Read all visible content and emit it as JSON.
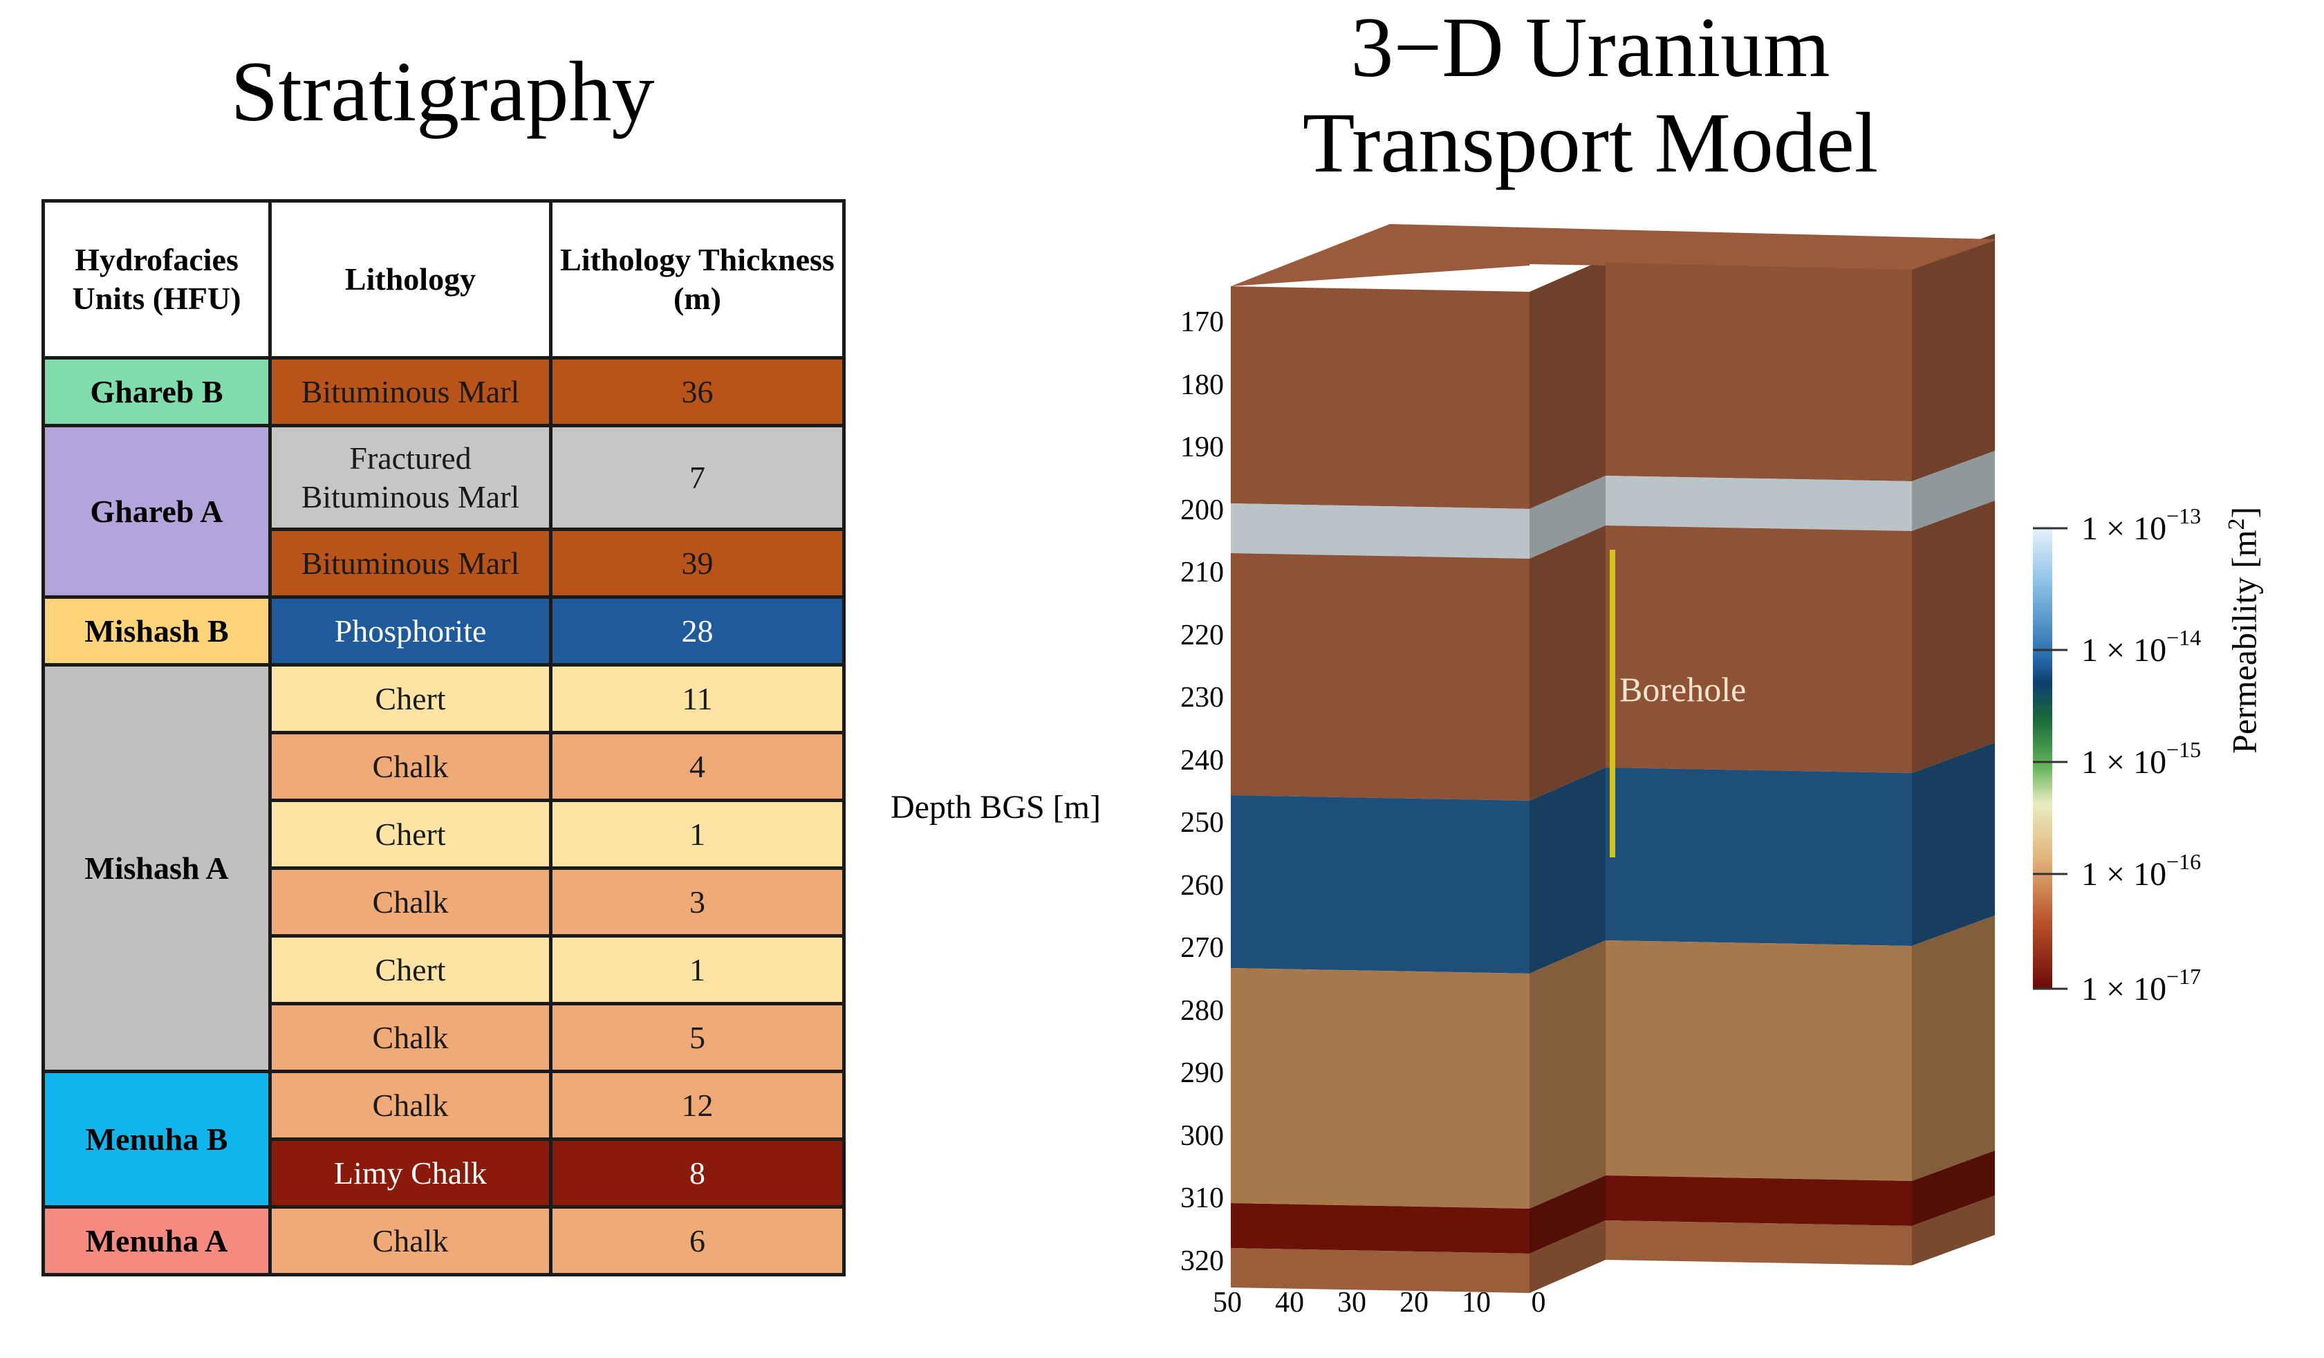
{
  "stratigraphy": {
    "title": "Stratigraphy",
    "headers": [
      "Hydrofacies Units (HFU)",
      "Lithology",
      "Lithology Thickness (m)"
    ],
    "rows": [
      {
        "hfu": "Ghareb B",
        "hfu_color": "#7fdcab",
        "hfu_rowspan": 1,
        "lithology": "Bituminous Marl",
        "thickness": "36",
        "color": "#b8541a",
        "text_color": "#1a1a1a"
      },
      {
        "hfu": "Ghareb A",
        "hfu_color": "#b3a4dc",
        "hfu_rowspan": 2,
        "lithology": "Fractured Bituminous Marl",
        "thickness": "7",
        "color": "#c6c6c6",
        "text_color": "#1a1a1a"
      },
      {
        "hfu": "",
        "lithology": "Bituminous Marl",
        "thickness": "39",
        "color": "#b8541a",
        "text_color": "#1a1a1a"
      },
      {
        "hfu": "Mishash B",
        "hfu_color": "#fdd37a",
        "hfu_rowspan": 1,
        "lithology": "Phosphorite",
        "thickness": "28",
        "color": "#1f5b9a",
        "text_color": "#ffffff"
      },
      {
        "hfu": "Mishash A",
        "hfu_color": "#c0c0c0",
        "hfu_rowspan": 6,
        "lithology": "Chert",
        "thickness": "11",
        "color": "#fde3a4",
        "text_color": "#1a1a1a"
      },
      {
        "hfu": "",
        "lithology": "Chalk",
        "thickness": "4",
        "color": "#f0aa78",
        "text_color": "#1a1a1a"
      },
      {
        "hfu": "",
        "lithology": "Chert",
        "thickness": "1",
        "color": "#fde3a4",
        "text_color": "#1a1a1a"
      },
      {
        "hfu": "",
        "lithology": "Chalk",
        "thickness": "3",
        "color": "#f0aa78",
        "text_color": "#1a1a1a"
      },
      {
        "hfu": "",
        "lithology": "Chert",
        "thickness": "1",
        "color": "#fde3a4",
        "text_color": "#1a1a1a"
      },
      {
        "hfu": "",
        "lithology": "Chalk",
        "thickness": "5",
        "color": "#f0aa78",
        "text_color": "#1a1a1a"
      },
      {
        "hfu": "Menuha B",
        "hfu_color": "#0fb5ec",
        "hfu_rowspan": 2,
        "lithology": "Chalk",
        "thickness": "12",
        "color": "#f0aa78",
        "text_color": "#1a1a1a"
      },
      {
        "hfu": "",
        "lithology": "Limy Chalk",
        "thickness": "8",
        "color": "#8a1a0a",
        "text_color": "#ffffff"
      },
      {
        "hfu": "Menuha A",
        "hfu_color": "#f48a80",
        "hfu_rowspan": 1,
        "lithology": "Chalk",
        "thickness": "6",
        "color": "#f0aa78",
        "text_color": "#1a1a1a"
      }
    ]
  },
  "model": {
    "title_line1": "3−D Uranium",
    "title_line2": "Transport Model",
    "y_axis_label": "Depth BGS [m]",
    "y_ticks": [
      "170",
      "180",
      "190",
      "200",
      "210",
      "220",
      "230",
      "240",
      "250",
      "260",
      "270",
      "280",
      "290",
      "300",
      "310",
      "320"
    ],
    "x_ticks": [
      "50",
      "40",
      "30",
      "20",
      "10",
      "0"
    ],
    "borehole_label": "Borehole",
    "colorbar": {
      "title": "Permeability [m",
      "title_sup": "2",
      "title_end": "]",
      "ticks": [
        {
          "base": "1 × 10",
          "exp": "−13"
        },
        {
          "base": "1 × 10",
          "exp": "−14"
        },
        {
          "base": "1 × 10",
          "exp": "−15"
        },
        {
          "base": "1 × 10",
          "exp": "−16"
        },
        {
          "base": "1 × 10",
          "exp": "−17"
        }
      ]
    },
    "layer_colors": {
      "marl": "#8e5236",
      "fractured": "#b9c3c8",
      "phosphorite": "#1d4f7a",
      "chalk_light": "#a8784d",
      "chalk": "#9a5e3a",
      "limy": "#6a1208"
    }
  }
}
